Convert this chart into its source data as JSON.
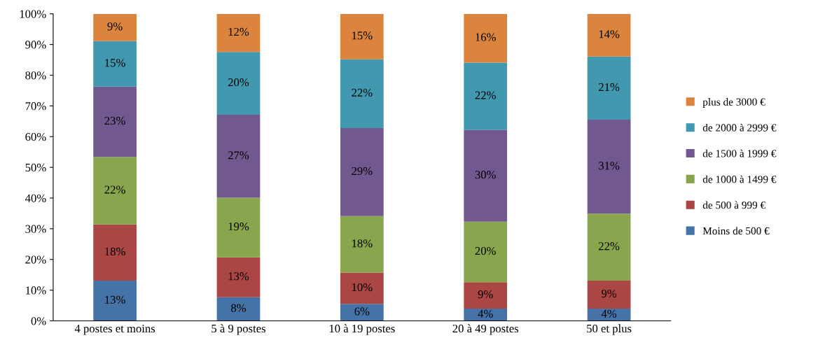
{
  "chart_data": {
    "type": "bar",
    "stacked": true,
    "categories": [
      "4 postes et moins",
      "5 à 9 postes",
      "10 à 19 postes",
      "20 à 49 postes",
      "50 et plus"
    ],
    "series": [
      {
        "name": "Moins de 500 €",
        "color": "#4572a7",
        "values": [
          13.1,
          7.7,
          5.5,
          4.0,
          4.0
        ],
        "value_labels": [
          "13%",
          "8%",
          "6%",
          "4%",
          "4%"
        ]
      },
      {
        "name": "de 500 à 999 €",
        "color": "#aa4643",
        "values": [
          18.3,
          13.0,
          10.2,
          8.6,
          9.1
        ],
        "value_labels": [
          "18%",
          "13%",
          "10%",
          "9%",
          "9%"
        ]
      },
      {
        "name": "de 1000 à 1499 €",
        "color": "#89a54e",
        "values": [
          22.0,
          19.4,
          18.4,
          19.7,
          21.8
        ],
        "value_labels": [
          "22%",
          "19%",
          "18%",
          "20%",
          "22%"
        ]
      },
      {
        "name": "de 1500 à 1999 €",
        "color": "#71588f",
        "values": [
          22.9,
          27.0,
          28.7,
          29.9,
          30.6
        ],
        "value_labels": [
          "23%",
          "27%",
          "29%",
          "30%",
          "31%"
        ]
      },
      {
        "name": "de 2000 à 2999 €",
        "color": "#4198af",
        "values": [
          14.8,
          20.5,
          22.4,
          21.9,
          20.6
        ],
        "value_labels": [
          "15%",
          "20%",
          "22%",
          "22%",
          "21%"
        ]
      },
      {
        "name": "plus de 3000 €",
        "color": "#db843d",
        "values": [
          8.9,
          12.4,
          14.8,
          15.9,
          13.9
        ],
        "value_labels": [
          "9%",
          "12%",
          "15%",
          "16%",
          "14%"
        ]
      }
    ],
    "ylim": [
      0,
      100
    ],
    "yticks": [
      {
        "value": 0,
        "label": "0%"
      },
      {
        "value": 10,
        "label": "10%"
      },
      {
        "value": 20,
        "label": "20%"
      },
      {
        "value": 30,
        "label": "30%"
      },
      {
        "value": 40,
        "label": "40%"
      },
      {
        "value": 50,
        "label": "50%"
      },
      {
        "value": 60,
        "label": "60%"
      },
      {
        "value": 70,
        "label": "70%"
      },
      {
        "value": 80,
        "label": "80%"
      },
      {
        "value": 90,
        "label": "90%"
      },
      {
        "value": 100,
        "label": "100%"
      }
    ],
    "grid": false,
    "legend": "right"
  }
}
